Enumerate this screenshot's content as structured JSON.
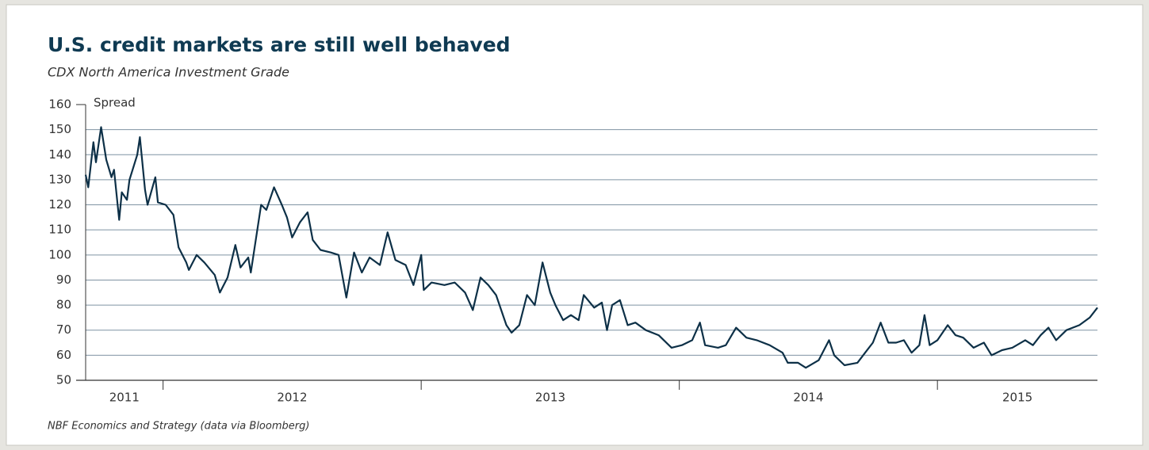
{
  "chart_data": {
    "type": "line",
    "title": "U.S. credit markets are still well behaved",
    "subtitle": "CDX North America Investment Grade",
    "ylabel": "Spread",
    "source": "NBF Economics and Strategy (data via Bloomberg)",
    "color": "#0d3047",
    "grid": true,
    "ylim": [
      50,
      160
    ],
    "yticks": [
      50,
      60,
      70,
      80,
      90,
      100,
      110,
      120,
      130,
      140,
      150,
      160
    ],
    "xlim": [
      2011.7,
      2015.62
    ],
    "xticks": [
      {
        "value": 2011.85,
        "label": "2011"
      },
      {
        "value": 2012.5,
        "label": "2012"
      },
      {
        "value": 2013.5,
        "label": "2013"
      },
      {
        "value": 2014.5,
        "label": "2014"
      },
      {
        "value": 2015.31,
        "label": "2015"
      }
    ],
    "xtick_marks": [
      2012,
      2013,
      2014,
      2015
    ],
    "x": [
      2011.7,
      2011.71,
      2011.73,
      2011.74,
      2011.76,
      2011.78,
      2011.8,
      2011.81,
      2011.83,
      2011.84,
      2011.86,
      2011.87,
      2011.9,
      2011.91,
      2011.93,
      2011.94,
      2011.97,
      2011.98,
      2012.01,
      2012.04,
      2012.06,
      2012.09,
      2012.1,
      2012.13,
      2012.16,
      2012.2,
      2012.22,
      2012.25,
      2012.28,
      2012.3,
      2012.33,
      2012.34,
      2012.38,
      2012.4,
      2012.43,
      2012.46,
      2012.48,
      2012.5,
      2012.53,
      2012.56,
      2012.58,
      2012.61,
      2012.65,
      2012.68,
      2012.71,
      2012.74,
      2012.77,
      2012.8,
      2012.84,
      2012.87,
      2012.9,
      2012.94,
      2012.97,
      2013.0,
      2013.01,
      2013.04,
      2013.09,
      2013.13,
      2013.17,
      2013.2,
      2013.23,
      2013.26,
      2013.29,
      2013.33,
      2013.35,
      2013.38,
      2013.41,
      2013.44,
      2013.47,
      2013.5,
      2013.52,
      2013.55,
      2013.58,
      2013.61,
      2013.63,
      2013.67,
      2013.7,
      2013.72,
      2013.74,
      2013.77,
      2013.8,
      2013.83,
      2013.87,
      2013.92,
      2013.97,
      2014.01,
      2014.05,
      2014.08,
      2014.1,
      2014.15,
      2014.18,
      2014.22,
      2014.26,
      2014.3,
      2014.35,
      2014.4,
      2014.42,
      2014.46,
      2014.49,
      2014.54,
      2014.58,
      2014.6,
      2014.64,
      2014.69,
      2014.72,
      2014.75,
      2014.78,
      2014.81,
      2014.84,
      2014.87,
      2014.9,
      2014.93,
      2014.95,
      2014.97,
      2015.0,
      2015.04,
      2015.07,
      2015.1,
      2015.14,
      2015.18,
      2015.21,
      2015.25,
      2015.29,
      2015.34,
      2015.37,
      2015.4,
      2015.43,
      2015.46,
      2015.5,
      2015.55,
      2015.59,
      2015.62
    ],
    "values": [
      132,
      127,
      145,
      137,
      151,
      138,
      131,
      134,
      114,
      125,
      122,
      130,
      140,
      147,
      126,
      120,
      131,
      121,
      120,
      116,
      103,
      97,
      94,
      100,
      97,
      92,
      85,
      91,
      104,
      95,
      99,
      93,
      120,
      118,
      127,
      120,
      115,
      107,
      113,
      117,
      106,
      102,
      101,
      100,
      83,
      101,
      93,
      99,
      96,
      109,
      98,
      96,
      88,
      100,
      86,
      89,
      88,
      89,
      85,
      78,
      91,
      88,
      84,
      72,
      69,
      72,
      84,
      80,
      97,
      85,
      80,
      74,
      76,
      74,
      84,
      79,
      81,
      70,
      80,
      82,
      72,
      73,
      70,
      68,
      63,
      64,
      66,
      73,
      64,
      63,
      64,
      71,
      67,
      66,
      64,
      61,
      57,
      57,
      55,
      58,
      66,
      60,
      56,
      57,
      61,
      65,
      73,
      65,
      65,
      66,
      61,
      64,
      76,
      64,
      66,
      72,
      68,
      67,
      63,
      65,
      60,
      62,
      63,
      66,
      64,
      68,
      71,
      66,
      70,
      72,
      75,
      79
    ]
  }
}
